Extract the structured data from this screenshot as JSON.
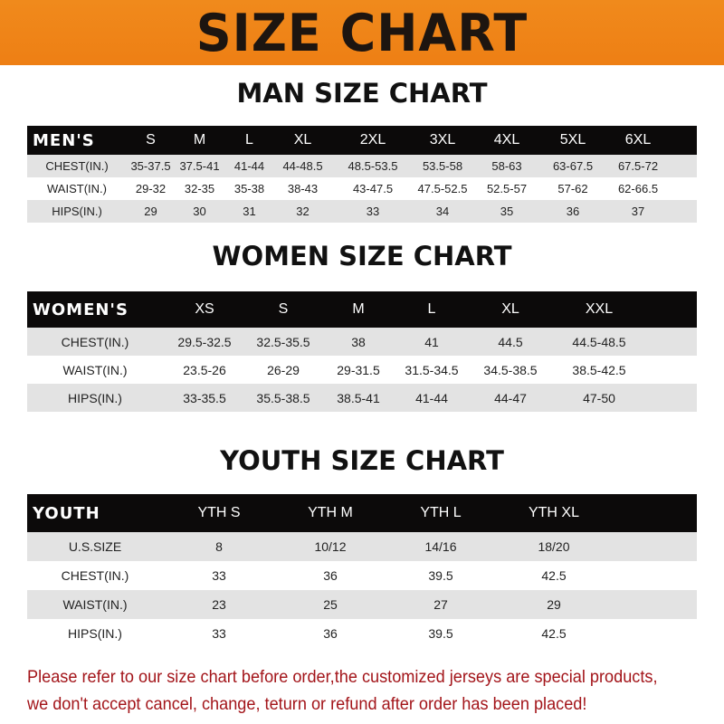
{
  "title": "SIZE CHART",
  "colors": {
    "banner": "#ef8418",
    "header_row": "#0c0a0a",
    "note": "#a3151a"
  },
  "tables": [
    {
      "id": "men",
      "title": "MAN SIZE CHART",
      "header": [
        "MEN'S",
        "S",
        "M",
        "L",
        "XL",
        "2XL",
        "3XL",
        "4XL",
        "5XL",
        "6XL"
      ],
      "rows": [
        [
          "CHEST(IN.)",
          "35-37.5",
          "37.5-41",
          "41-44",
          "44-48.5",
          "48.5-53.5",
          "53.5-58",
          "58-63",
          "63-67.5",
          "67.5-72"
        ],
        [
          "WAIST(IN.)",
          "29-32",
          "32-35",
          "35-38",
          "38-43",
          "43-47.5",
          "47.5-52.5",
          "52.5-57",
          "57-62",
          "62-66.5"
        ],
        [
          "HIPS(IN.)",
          "29",
          "30",
          "31",
          "32",
          "33",
          "34",
          "35",
          "36",
          "37"
        ]
      ]
    },
    {
      "id": "women",
      "title": "WOMEN SIZE CHART",
      "header": [
        "WOMEN'S",
        "XS",
        "S",
        "M",
        "L",
        "XL",
        "XXL"
      ],
      "rows": [
        [
          "CHEST(IN.)",
          "29.5-32.5",
          "32.5-35.5",
          "38",
          "41",
          "44.5",
          "44.5-48.5"
        ],
        [
          "WAIST(IN.)",
          "23.5-26",
          "26-29",
          "29-31.5",
          "31.5-34.5",
          "34.5-38.5",
          "38.5-42.5"
        ],
        [
          "HIPS(IN.)",
          "33-35.5",
          "35.5-38.5",
          "38.5-41",
          "41-44",
          "44-47",
          "47-50"
        ]
      ]
    },
    {
      "id": "youth",
      "title": "YOUTH SIZE CHART",
      "header": [
        "YOUTH",
        "YTH S",
        "YTH M",
        "YTH L",
        "YTH XL"
      ],
      "rows": [
        [
          "U.S.SIZE",
          "8",
          "10/12",
          "14/16",
          "18/20"
        ],
        [
          "CHEST(IN.)",
          "33",
          "36",
          "39.5",
          "42.5"
        ],
        [
          "WAIST(IN.)",
          "23",
          "25",
          "27",
          "29"
        ],
        [
          "HIPS(IN.)",
          "33",
          "36",
          "39.5",
          "42.5"
        ]
      ]
    }
  ],
  "note_lines": [
    "Please refer to our size chart before order,the customized jerseys are special products,",
    "we don't accept cancel, change, teturn or refund after order has been placed!"
  ]
}
